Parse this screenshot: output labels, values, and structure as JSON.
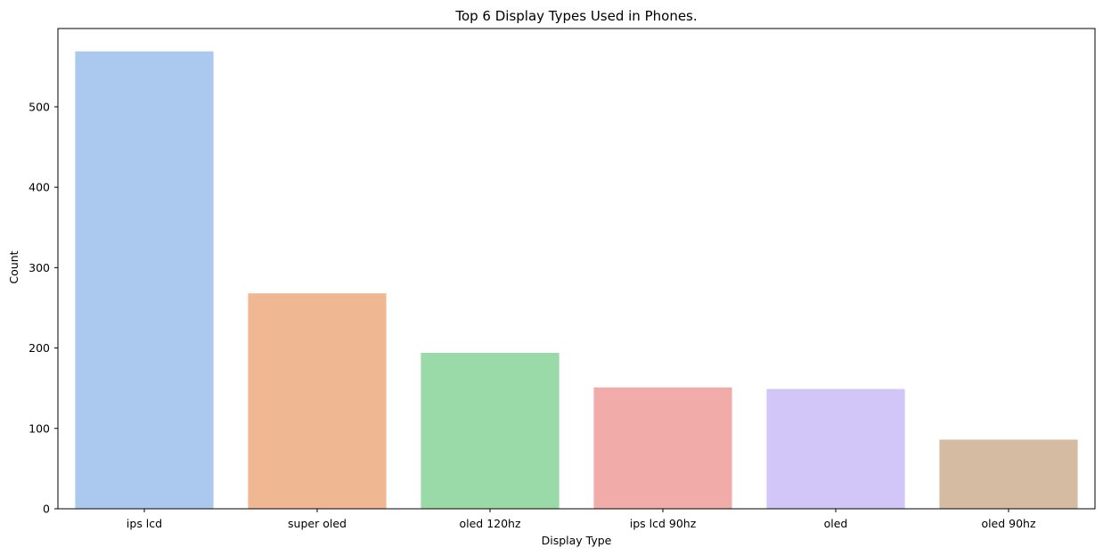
{
  "chart_data": {
    "type": "bar",
    "title": "Top 6 Display Types Used in Phones.",
    "xlabel": "Display Type",
    "ylabel": "Count",
    "categories": [
      "ips lcd",
      "super oled",
      "oled 120hz",
      "ips lcd 90hz",
      "oled",
      "oled 90hz"
    ],
    "values": [
      569,
      268,
      194,
      151,
      149,
      86
    ],
    "colors": [
      "#abc9ee",
      "#efb893",
      "#9ad9a8",
      "#f1aba9",
      "#d2c5f7",
      "#d5bba1"
    ],
    "ylim": [
      0,
      597.45
    ],
    "yticks": [
      0,
      100,
      200,
      300,
      400,
      500
    ],
    "grid": false,
    "legend": "none"
  }
}
